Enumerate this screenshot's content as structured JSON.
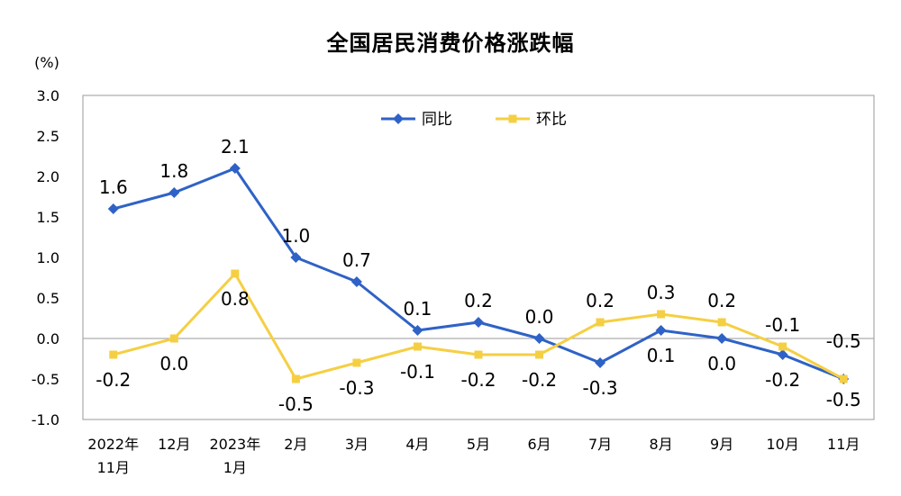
{
  "chart_data": {
    "type": "line",
    "title": "全国居民消费价格涨跌幅",
    "ylabel": "(%)",
    "xlabel": "",
    "ylim": [
      -1.0,
      3.0
    ],
    "yticks": [
      "3.0",
      "2.5",
      "2.0",
      "1.5",
      "1.0",
      "0.5",
      "0.0",
      "-0.5",
      "-1.0"
    ],
    "categories": [
      [
        "2022年",
        "11月"
      ],
      [
        "12月"
      ],
      [
        "2023年",
        "1月"
      ],
      [
        "2月"
      ],
      [
        "3月"
      ],
      [
        "4月"
      ],
      [
        "5月"
      ],
      [
        "6月"
      ],
      [
        "7月"
      ],
      [
        "8月"
      ],
      [
        "9月"
      ],
      [
        "10月"
      ],
      [
        "11月"
      ]
    ],
    "legend_position": "top",
    "grid": false,
    "series": [
      {
        "name": "同比",
        "color": "#2f62c6",
        "marker": "diamond",
        "values": [
          1.6,
          1.8,
          2.1,
          1.0,
          0.7,
          0.1,
          0.2,
          0.0,
          -0.3,
          0.1,
          0.0,
          -0.2,
          -0.5
        ],
        "labels": [
          "1.6",
          "1.8",
          "2.1",
          "1.0",
          "0.7",
          "0.1",
          "0.2",
          "0.0",
          "-0.3",
          "0.1",
          "0.0",
          "-0.2",
          "-0.5"
        ]
      },
      {
        "name": "环比",
        "color": "#f5cf43",
        "marker": "square",
        "values": [
          -0.2,
          0.0,
          0.8,
          -0.5,
          -0.3,
          -0.1,
          -0.2,
          -0.2,
          0.2,
          0.3,
          0.2,
          -0.1,
          -0.5
        ],
        "labels": [
          "-0.2",
          "0.0",
          "0.8",
          "-0.5",
          "-0.3",
          "-0.1",
          "-0.2",
          "-0.2",
          "0.2",
          "0.3",
          "0.2",
          "-0.1",
          "-0.5"
        ]
      }
    ]
  }
}
